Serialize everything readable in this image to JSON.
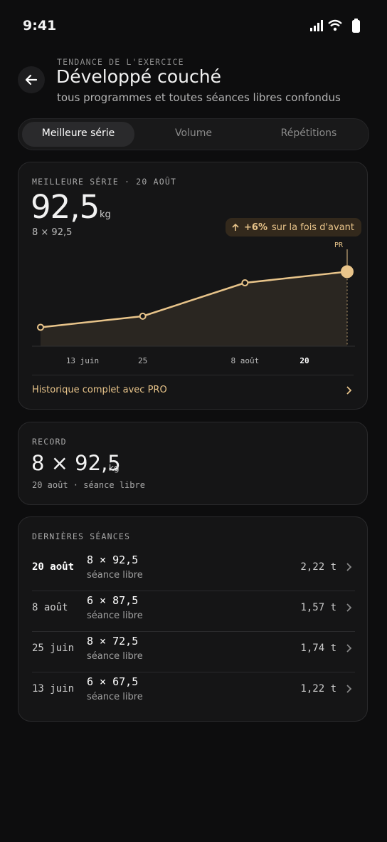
{
  "status_bar": {
    "time": "9:41"
  },
  "header": {
    "eyebrow": "TENDANCE DE L'EXERCICE",
    "title": "Développé couché",
    "subtitle": "tous programmes et toutes séances libres confondus"
  },
  "tabs": [
    "Meilleure série",
    "Volume",
    "Répétitions"
  ],
  "best_set_card": {
    "label": "MEILLEURE SÉRIE · 20 AOÛT",
    "value": "92,5",
    "unit": "kg",
    "detail": "8 × 92,5",
    "badge": {
      "change": "+6%",
      "text": "sur la fois d'avant"
    },
    "link": "Historique complet avec PRO"
  },
  "chart_data": {
    "type": "line",
    "categories": [
      "13 juin",
      "25",
      "8 août",
      "20"
    ],
    "values": [
      67.5,
      72.5,
      87.5,
      92.5
    ],
    "color": "#e8c48a",
    "ylim": [
      59,
      100
    ],
    "annotation": "PR"
  },
  "record_card": {
    "label": "RECORD",
    "value": "8 × 92,5",
    "unit": "kg",
    "detail": "20 août · séance libre"
  },
  "recent_sessions": {
    "title": "DERNIÈRES SÉANCES",
    "rows": [
      {
        "date": "20 août",
        "set": "8 × 92,5",
        "note": "séance libre",
        "tonnage": "2,22 t"
      },
      {
        "date": "8 août",
        "set": "6 × 87,5",
        "note": "séance libre",
        "tonnage": "1,57 t"
      },
      {
        "date": "25 juin",
        "set": "8 × 72,5",
        "note": "séance libre",
        "tonnage": "1,74 t"
      },
      {
        "date": "13 juin",
        "set": "6 × 67,5",
        "note": "séance libre",
        "tonnage": "1,22 t"
      }
    ]
  }
}
